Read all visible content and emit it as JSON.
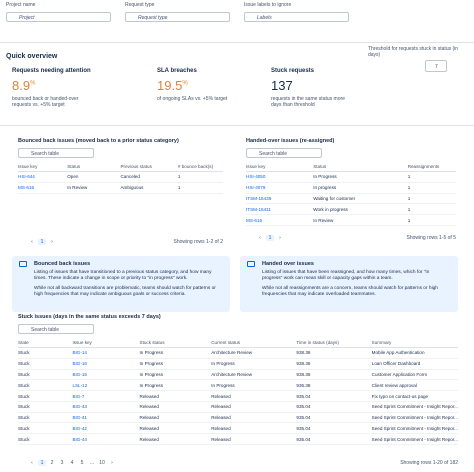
{
  "filters": [
    {
      "label": "Project name",
      "placeholder": "Project"
    },
    {
      "label": "Request type",
      "placeholder": "Request type"
    },
    {
      "label": "Issue labels to ignore",
      "placeholder": "Labels"
    }
  ],
  "overview": {
    "title": "Quick overview",
    "threshold_label": "Threshold for requests stuck in status (in days)",
    "threshold_value": "7",
    "kpis": [
      {
        "title": "Requests needing attention",
        "value": "8.9",
        "unit": "%",
        "desc": "bounced back or handed-over requests vs. +5% target"
      },
      {
        "title": "SLA breaches",
        "value": "19.5",
        "unit": "%",
        "desc": "of ongoing SLAs vs. +5% target"
      },
      {
        "title": "Stuck requests",
        "value": "137",
        "unit": null,
        "desc": "requests in the same status more days than threshold"
      }
    ]
  },
  "bounced": {
    "title": "Bounced back issues (moved back to a prior status category)",
    "search": "Search table",
    "columns": [
      "Issue key",
      "Status",
      "Previous status",
      "# bounce back(s)"
    ],
    "rows": [
      [
        "HSI-644",
        "Open",
        "Canceled",
        "1"
      ],
      [
        "MS-616",
        "In Review",
        "Ambiguous",
        "1"
      ]
    ],
    "pages": [
      "1"
    ],
    "showing": "Showing rows 1-2 of 2"
  },
  "handed": {
    "title": "Handed-over issues (re-assigned)",
    "search": "Search table",
    "columns": [
      "Issue key",
      "Status",
      "Reassignments"
    ],
    "rows": [
      [
        "HSI-4050",
        "In Progress",
        "1"
      ],
      [
        "HSI-4079",
        "In progress",
        "1"
      ],
      [
        "ITSM-15439",
        "Waiting for customer",
        "1"
      ],
      [
        "ITSM-15411",
        "Work in progress",
        "1"
      ],
      [
        "MS-616",
        "In Review",
        "1"
      ]
    ],
    "pages": [
      "1"
    ],
    "showing": "Showing rows 1-5 of 5"
  },
  "info": [
    {
      "title": "Bounced back issues",
      "paragraphs": [
        "Listing of issues that have transitioned to a previous status category, and how many times. These indicate a change in scope or priority to \"in progress\" work.",
        "While not all backward transitions are problematic, teams should watch for patterns or high frequencies that may indicate ambiguous goals or success criteria."
      ]
    },
    {
      "title": "Handed over issues",
      "paragraphs": [
        "Listing of issues that have been reassigned, and how many times, which for \"in progress\" work can mean skill or capacity gaps within a team.",
        "While not all reassignments are a concern, teams should watch for patterns or high frequencies that may indicate overloaded teammates."
      ]
    }
  ],
  "stuck": {
    "title": "Stuck issues (days in the same status exceeds 7 days)",
    "search": "Search table",
    "columns": [
      "State",
      "Issue key",
      "Stuck status",
      "Current status",
      "Time in status (days)",
      "Summary"
    ],
    "rows": [
      [
        "Stuck",
        "BIG-14",
        "In Progress",
        "Architecture Review",
        "938.36",
        "Mobile App Authentication"
      ],
      [
        "Stuck",
        "BIG-16",
        "In Progress",
        "In Progress",
        "938.36",
        "Loan Officer Dashboard"
      ],
      [
        "Stuck",
        "BIG-15",
        "In Progress",
        "Architecture Review",
        "938.36",
        "Customer Application Form"
      ],
      [
        "Stuck",
        "LSL-12",
        "In Progress",
        "In Progress",
        "936.38",
        "Client review approval"
      ],
      [
        "Stuck",
        "BIG-7",
        "Released",
        "Released",
        "935.04",
        "Fix typo on contact-us page"
      ],
      [
        "Stuck",
        "BIG-43",
        "Released",
        "Released",
        "935.04",
        "Seed Sprint Commitment - Insight Repor..."
      ],
      [
        "Stuck",
        "BIG-41",
        "Released",
        "Released",
        "935.04",
        "Seed Sprint Commitment - Insight Repor..."
      ],
      [
        "Stuck",
        "BIG-42",
        "Released",
        "Released",
        "935.04",
        "Seed Sprint Commitment - Insight Repor..."
      ],
      [
        "Stuck",
        "BIG-44",
        "Released",
        "Released",
        "935.04",
        "Seed Sprint Commitment - Insight Repor..."
      ]
    ],
    "pages": [
      "1",
      "2",
      "3",
      "4",
      "5",
      "...",
      "10"
    ],
    "showing": "Showing rows 1-20 of 182"
  }
}
